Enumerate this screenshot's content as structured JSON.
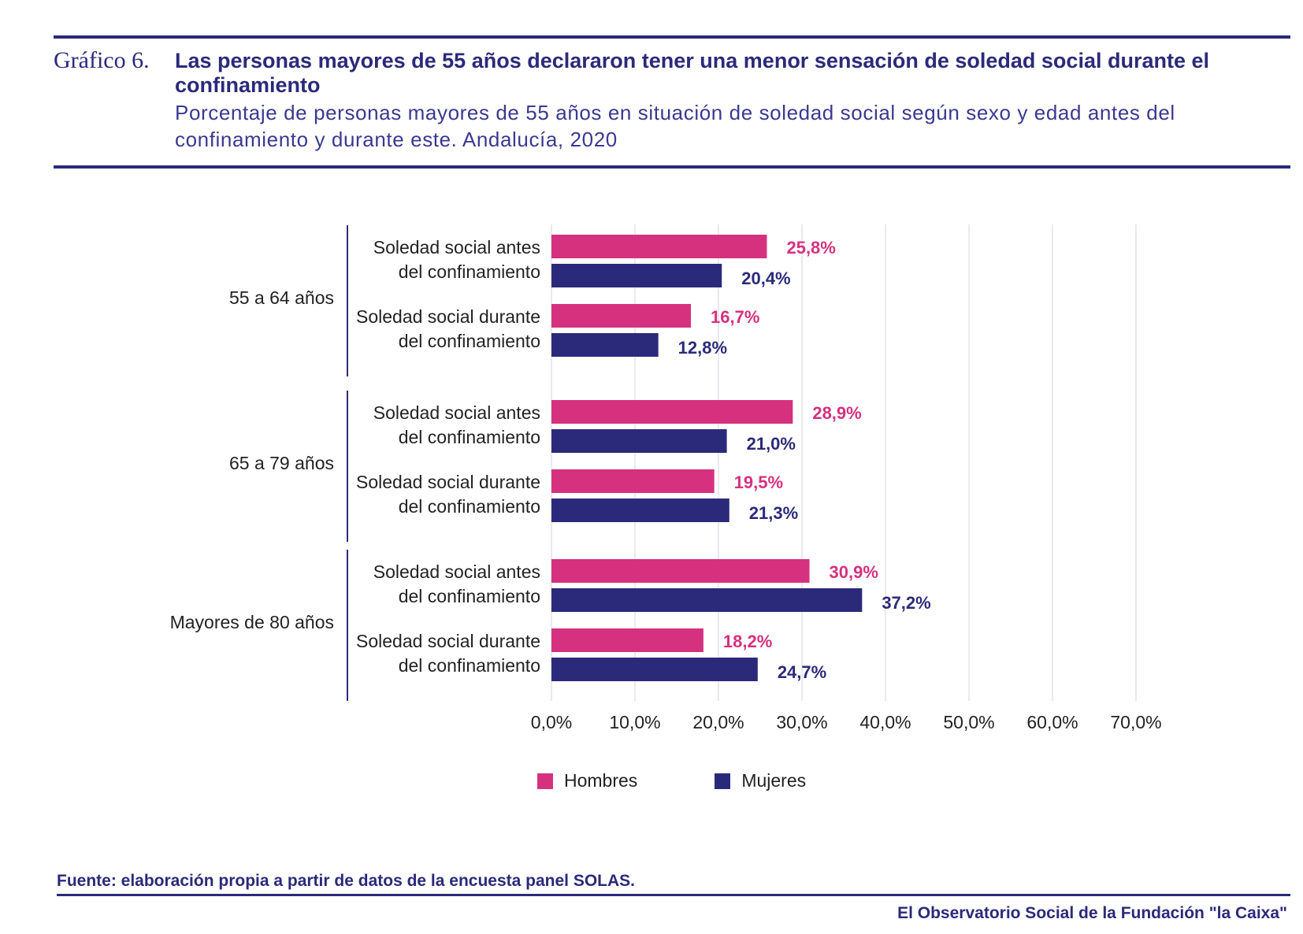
{
  "header": {
    "figure_label": "Gráfico 6.",
    "title": "Las personas mayores de 55 años declararon tener una menor sensación de soledad social durante el confinamiento",
    "subtitle": "Porcentaje de personas mayores de 55 años en situación de soledad social según sexo y edad antes del confinamiento y durante este. Andalucía, 2020"
  },
  "colors": {
    "hombres": "#d6317f",
    "mujeres": "#2b2a7a",
    "grid": "#e3e3e8",
    "axis": "#2b2a7a"
  },
  "chart_data": {
    "type": "bar",
    "orientation": "horizontal",
    "xlim": [
      0,
      70
    ],
    "xticks": [
      "0,0%",
      "10,0%",
      "20,0%",
      "30,0%",
      "40,0%",
      "50,0%",
      "60,0%",
      "70,0%"
    ],
    "legend_position": "bottom",
    "series": [
      {
        "name": "Hombres",
        "color": "#d6317f"
      },
      {
        "name": "Mujeres",
        "color": "#2b2a7a"
      }
    ],
    "groups": [
      {
        "label": "55 a 64 años",
        "categories": [
          {
            "label_lines": [
              "Soledad social antes",
              "del confinamiento"
            ],
            "hombres": 25.8,
            "mujeres": 20.4,
            "hombres_label": "25,8%",
            "mujeres_label": "20,4%"
          },
          {
            "label_lines": [
              "Soledad social durante",
              "del confinamiento"
            ],
            "hombres": 16.7,
            "mujeres": 12.8,
            "hombres_label": "16,7%",
            "mujeres_label": "12,8%"
          }
        ]
      },
      {
        "label": "65 a 79 años",
        "categories": [
          {
            "label_lines": [
              "Soledad social antes",
              "del confinamiento"
            ],
            "hombres": 28.9,
            "mujeres": 21.0,
            "hombres_label": "28,9%",
            "mujeres_label": "21,0%"
          },
          {
            "label_lines": [
              "Soledad social durante",
              "del confinamiento"
            ],
            "hombres": 19.5,
            "mujeres": 21.3,
            "hombres_label": "19,5%",
            "mujeres_label": "21,3%"
          }
        ]
      },
      {
        "label": "Mayores de 80 años",
        "categories": [
          {
            "label_lines": [
              "Soledad social antes",
              "del confinamiento"
            ],
            "hombres": 30.9,
            "mujeres": 37.2,
            "hombres_label": "30,9%",
            "mujeres_label": "37,2%"
          },
          {
            "label_lines": [
              "Soledad social durante",
              "del confinamiento"
            ],
            "hombres": 18.2,
            "mujeres": 24.7,
            "hombres_label": "18,2%",
            "mujeres_label": "24,7%"
          }
        ]
      }
    ]
  },
  "legend": {
    "hombres": "Hombres",
    "mujeres": "Mujeres"
  },
  "source": "Fuente:  elaboración propia a partir de datos de la encuesta panel SOLAS.",
  "footer": "El Observatorio Social de la Fundación \"la Caixa\""
}
